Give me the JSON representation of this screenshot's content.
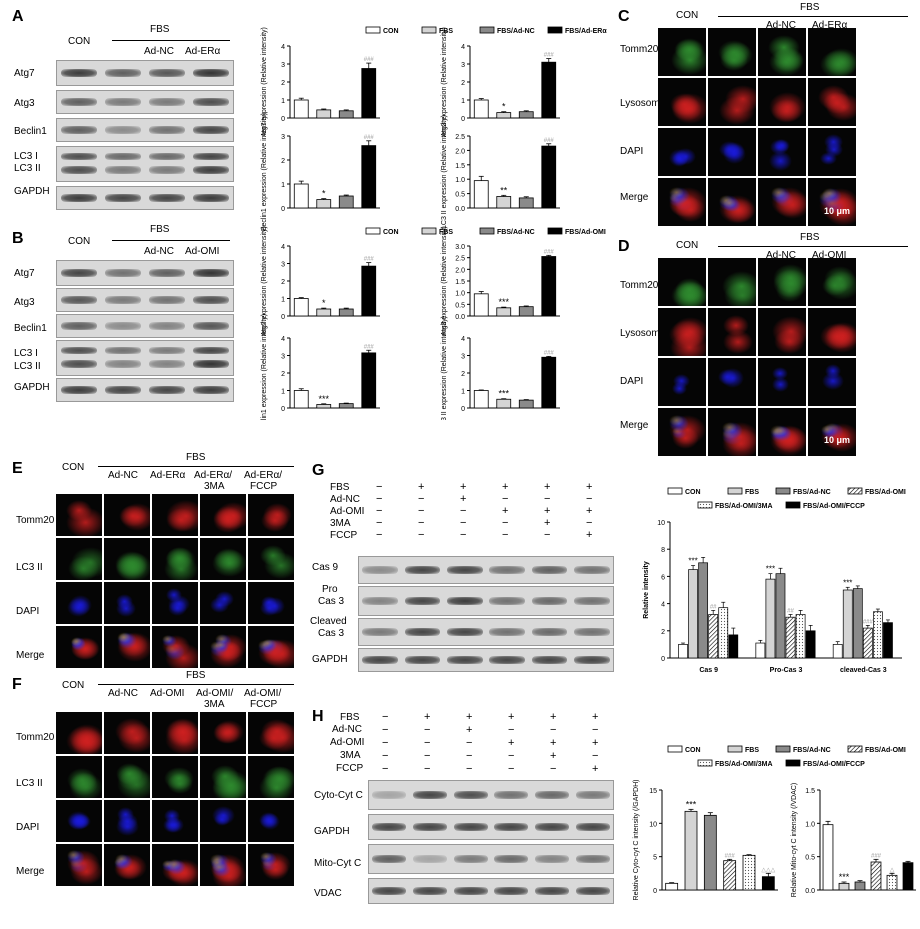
{
  "panels": {
    "A": {
      "letter": "A",
      "con": "CON",
      "fbs": "FBS",
      "lanes": [
        "Ad-NC",
        "Ad-ERα"
      ],
      "rows": [
        "Atg7",
        "Atg3",
        "Beclin1",
        "LC3 I",
        "LC3 II",
        "GAPDH"
      ]
    },
    "B": {
      "letter": "B",
      "con": "CON",
      "fbs": "FBS",
      "lanes": [
        "Ad-NC",
        "Ad-OMI"
      ],
      "rows": [
        "Atg7",
        "Atg3",
        "Beclin1",
        "LC3 I",
        "LC3 II",
        "GAPDH"
      ]
    },
    "C": {
      "letter": "C",
      "con": "CON",
      "fbs": "FBS",
      "lanes": [
        "Ad-NC",
        "Ad-ERα"
      ],
      "rows": [
        "Tomm20",
        "Lysosome",
        "DAPI",
        "Merge"
      ],
      "scale": "10 μm"
    },
    "D": {
      "letter": "D",
      "con": "CON",
      "fbs": "FBS",
      "lanes": [
        "Ad-NC",
        "Ad-OMI"
      ],
      "rows": [
        "Tomm20",
        "Lysosome",
        "DAPI",
        "Merge"
      ],
      "scale": "10 μm"
    },
    "E": {
      "letter": "E",
      "con": "CON",
      "fbs": "FBS",
      "lanes": [
        "Ad-NC",
        "Ad-ERα",
        "Ad-ERα/",
        "3MA",
        "Ad-ERα/",
        "FCCP"
      ],
      "rows": [
        "Tomm20",
        "LC3 II",
        "DAPI",
        "Merge"
      ],
      "scale": "10 μm"
    },
    "F": {
      "letter": "F",
      "con": "CON",
      "fbs": "FBS",
      "lanes": [
        "Ad-NC",
        "Ad-OMI",
        "Ad-OMI/",
        "3MA",
        "Ad-OMI/",
        "FCCP"
      ],
      "rows": [
        "Tomm20",
        "LC3 II",
        "DAPI",
        "Merge"
      ],
      "scale": "10 μm"
    },
    "G": {
      "letter": "G",
      "treat": [
        "FBS",
        "Ad-NC",
        "Ad-OMI",
        "3MA",
        "FCCP"
      ],
      "rows": [
        "Cas 9",
        "Pro",
        "Cas 3",
        "Cleaved",
        "Cas 3",
        "GAPDH"
      ]
    },
    "H": {
      "letter": "H",
      "treat": [
        "FBS",
        "Ad-NC",
        "Ad-OMI",
        "3MA",
        "FCCP"
      ],
      "rows": [
        "Cyto-Cyt C",
        "GAPDH",
        "Mito-Cyt C",
        "VDAC"
      ]
    }
  },
  "treat_signs": {
    "FBS": [
      "−",
      "+",
      "+",
      "+",
      "+",
      "+"
    ],
    "Ad-NC": [
      "−",
      "−",
      "+",
      "−",
      "−",
      "−"
    ],
    "Ad-OMI": [
      "−",
      "−",
      "−",
      "+",
      "+",
      "+"
    ],
    "3MA": [
      "−",
      "−",
      "−",
      "−",
      "+",
      "−"
    ],
    "FCCP": [
      "−",
      "−",
      "−",
      "−",
      "−",
      "+"
    ]
  },
  "legends": {
    "AB": [
      "CON",
      "FBS"
    ],
    "A3": [
      "FBS/Ad-NC",
      "FBS/Ad-ERα"
    ],
    "B3": [
      "FBS/Ad-NC",
      "FBS/Ad-OMI"
    ],
    "GH": [
      "CON",
      "FBS",
      "FBS/Ad-NC",
      "FBS/Ad-OMI",
      "FBS/Ad-OMI/3MA",
      "FBS/Ad-OMI/FCCP"
    ]
  },
  "colors": {
    "con": "#ffffff",
    "fbs": "#d4d4d4",
    "adnc": "#8a8a8a",
    "ad": "#000000",
    "sig": "#000000",
    "hash": "#9a9a9a"
  },
  "chart_data": [
    {
      "type": "bar",
      "panel": "A",
      "ylabel": "Atg7 expression (Relative intensity)",
      "ylim": [
        0,
        4
      ],
      "yticks": [
        "0",
        "1",
        "2",
        "3",
        "4"
      ],
      "values": [
        1.0,
        0.45,
        0.4,
        2.75
      ],
      "errors": [
        0.1,
        0.05,
        0.05,
        0.3
      ],
      "annotations": [
        "",
        "",
        "",
        "###"
      ]
    },
    {
      "type": "bar",
      "panel": "A",
      "ylabel": "Atg3 expression (Relative intensity)",
      "ylim": [
        0,
        4
      ],
      "yticks": [
        "0",
        "1",
        "2",
        "3",
        "4"
      ],
      "values": [
        1.0,
        0.3,
        0.35,
        3.1
      ],
      "errors": [
        0.08,
        0.05,
        0.05,
        0.2
      ],
      "annotations": [
        "",
        "*",
        "",
        "###"
      ]
    },
    {
      "type": "bar",
      "panel": "A",
      "ylabel": "Beclin1 expression (Relative intensity)",
      "ylim": [
        0,
        3
      ],
      "yticks": [
        "0",
        "1",
        "2",
        "3"
      ],
      "values": [
        1.0,
        0.35,
        0.5,
        2.6
      ],
      "errors": [
        0.12,
        0.04,
        0.04,
        0.2
      ],
      "annotations": [
        "",
        "*",
        "",
        "###"
      ]
    },
    {
      "type": "bar",
      "panel": "A",
      "ylabel": "LC3 II expression (Relative intensity)",
      "ylim": [
        0,
        2.5
      ],
      "yticks": [
        "0.0",
        "0.5",
        "1.0",
        "1.5",
        "2.0",
        "2.5"
      ],
      "values": [
        0.95,
        0.4,
        0.35,
        2.15
      ],
      "errors": [
        0.15,
        0.04,
        0.04,
        0.08
      ],
      "annotations": [
        "",
        "**",
        "",
        "###"
      ]
    },
    {
      "type": "bar",
      "panel": "B",
      "ylabel": "Atg7 expression (Relative intensity)",
      "ylim": [
        0,
        4
      ],
      "yticks": [
        "0",
        "1",
        "2",
        "3",
        "4"
      ],
      "values": [
        1.0,
        0.4,
        0.4,
        2.85
      ],
      "errors": [
        0.05,
        0.05,
        0.05,
        0.2
      ],
      "annotations": [
        "",
        "*",
        "",
        "###"
      ]
    },
    {
      "type": "bar",
      "panel": "B",
      "ylabel": "Atg3 expression (Relative intensity)",
      "ylim": [
        0,
        3
      ],
      "yticks": [
        "0.0",
        "0.5",
        "1.0",
        "1.5",
        "2.0",
        "2.5",
        "3.0"
      ],
      "values": [
        0.95,
        0.35,
        0.4,
        2.55
      ],
      "errors": [
        0.1,
        0.03,
        0.03,
        0.05
      ],
      "annotations": [
        "",
        "***",
        "",
        "###"
      ]
    },
    {
      "type": "bar",
      "panel": "B",
      "ylabel": "Beclin1 expression (Relative intensity)",
      "ylim": [
        0,
        4
      ],
      "yticks": [
        "0",
        "1",
        "2",
        "3",
        "4"
      ],
      "values": [
        1.0,
        0.2,
        0.25,
        3.15
      ],
      "errors": [
        0.1,
        0.04,
        0.03,
        0.15
      ],
      "annotations": [
        "",
        "***",
        "",
        "###"
      ]
    },
    {
      "type": "bar",
      "panel": "B",
      "ylabel": "LC3 II expression (Relative intensity)",
      "ylim": [
        0,
        4
      ],
      "yticks": [
        "0",
        "1",
        "2",
        "3",
        "4"
      ],
      "values": [
        1.0,
        0.5,
        0.45,
        2.9
      ],
      "errors": [
        0.03,
        0.03,
        0.03,
        0.05
      ],
      "annotations": [
        "",
        "***",
        "",
        "###"
      ]
    },
    {
      "type": "bar",
      "panel": "G",
      "ylabel": "Relative intensity",
      "ylim": [
        0,
        10
      ],
      "yticks": [
        "0",
        "2",
        "4",
        "6",
        "8",
        "10"
      ],
      "categories": [
        "Cas 9",
        "Pro-Cas 3",
        "cleaved-Cas 3"
      ],
      "series": [
        {
          "name": "CON",
          "values": [
            1.0,
            1.1,
            1.0
          ],
          "errors": [
            0.1,
            0.2,
            0.2
          ],
          "annotations": [
            "",
            "",
            ""
          ]
        },
        {
          "name": "FBS",
          "values": [
            6.5,
            5.8,
            5.0
          ],
          "errors": [
            0.3,
            0.4,
            0.2
          ],
          "annotations": [
            "***",
            "***",
            "***"
          ]
        },
        {
          "name": "FBS/Ad-NC",
          "values": [
            7.0,
            6.2,
            5.1
          ],
          "errors": [
            0.4,
            0.4,
            0.2
          ],
          "annotations": [
            "",
            "",
            ""
          ]
        },
        {
          "name": "FBS/Ad-OMI",
          "values": [
            3.2,
            3.0,
            2.2
          ],
          "errors": [
            0.3,
            0.2,
            0.2
          ],
          "annotations": [
            "##",
            "##",
            "###"
          ]
        },
        {
          "name": "FBS/Ad-OMI/3MA",
          "values": [
            3.7,
            3.2,
            3.4
          ],
          "errors": [
            0.4,
            0.3,
            0.2
          ],
          "annotations": [
            "",
            "",
            ""
          ]
        },
        {
          "name": "FBS/Ad-OMI/FCCP",
          "values": [
            1.7,
            2.0,
            2.6
          ],
          "errors": [
            0.5,
            0.4,
            0.2
          ],
          "annotations": [
            "",
            "",
            ""
          ]
        }
      ]
    },
    {
      "type": "bar",
      "panel": "H",
      "ylabel": "Relative Cyto-cyt C intensity (/GAPDH)",
      "ylim": [
        0,
        15
      ],
      "yticks": [
        "0",
        "5",
        "10",
        "15"
      ],
      "values": [
        1.0,
        11.8,
        11.2,
        4.4,
        5.2,
        2.0
      ],
      "errors": [
        0.1,
        0.3,
        0.4,
        0.2,
        0.1,
        0.5
      ],
      "annotations": [
        "",
        "***",
        "",
        "###",
        "",
        "△△△"
      ]
    },
    {
      "type": "bar",
      "panel": "H",
      "ylabel": "Relative Mito-cyt C intensity (/VDAC)",
      "ylim": [
        0,
        1.5
      ],
      "yticks": [
        "0.0",
        "0.5",
        "1.0",
        "1.5"
      ],
      "values": [
        0.98,
        0.1,
        0.12,
        0.42,
        0.22,
        0.41
      ],
      "errors": [
        0.05,
        0.02,
        0.02,
        0.04,
        0.03,
        0.02
      ],
      "annotations": [
        "",
        "***",
        "",
        "###",
        "△",
        ""
      ]
    }
  ]
}
